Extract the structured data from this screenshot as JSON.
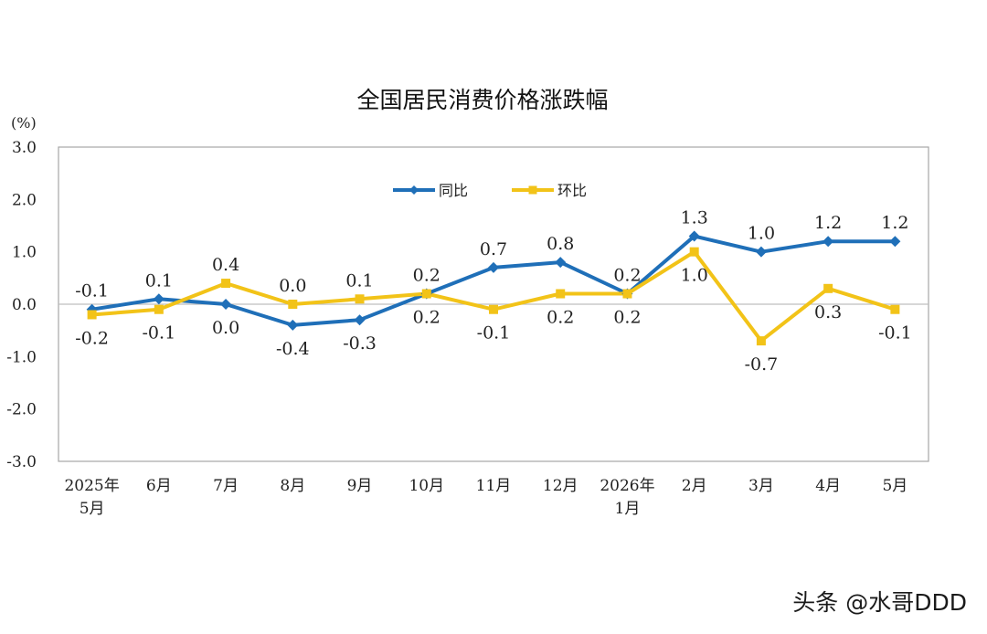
{
  "chart_data": {
    "type": "line",
    "title": "全国居民消费价格涨跌幅",
    "unit": "(%)",
    "categories": [
      [
        "2025年",
        "5月"
      ],
      [
        "6月"
      ],
      [
        "7月"
      ],
      [
        "8月"
      ],
      [
        "9月"
      ],
      [
        "10月"
      ],
      [
        "11月"
      ],
      [
        "12月"
      ],
      [
        "2026年",
        "1月"
      ],
      [
        "2月"
      ],
      [
        "3月"
      ],
      [
        "4月"
      ],
      [
        "5月"
      ]
    ],
    "ylim": [
      -3.0,
      3.0
    ],
    "yticks": [
      "3.0",
      "2.0",
      "1.0",
      "0.0",
      "-1.0",
      "-2.0",
      "-3.0"
    ],
    "grid": false,
    "legend_position": "top-center",
    "series": [
      {
        "name": "同比",
        "color": "#1f6fb8",
        "marker": "diamond",
        "values": [
          -0.1,
          0.1,
          0.0,
          -0.4,
          -0.3,
          0.2,
          0.7,
          0.8,
          0.2,
          1.3,
          1.0,
          1.2,
          1.2
        ],
        "labels": [
          "-0.1",
          "0.1",
          "0.0",
          "-0.4",
          "-0.3",
          "0.2",
          "0.7",
          "0.8",
          "0.2",
          "1.3",
          "1.0",
          "1.2",
          "1.2"
        ]
      },
      {
        "name": "环比",
        "color": "#f2c318",
        "marker": "square",
        "values": [
          -0.2,
          -0.1,
          0.4,
          0.0,
          0.1,
          0.2,
          -0.1,
          0.2,
          0.2,
          1.0,
          -0.7,
          0.3,
          -0.1
        ],
        "labels": [
          "-0.2",
          "-0.1",
          "0.4",
          "0.0",
          "0.1",
          "0.2",
          "-0.1",
          "0.2",
          "0.2",
          "1.0",
          "-0.7",
          "0.3",
          "-0.1"
        ]
      }
    ]
  },
  "watermark": "头条 @水哥DDD"
}
